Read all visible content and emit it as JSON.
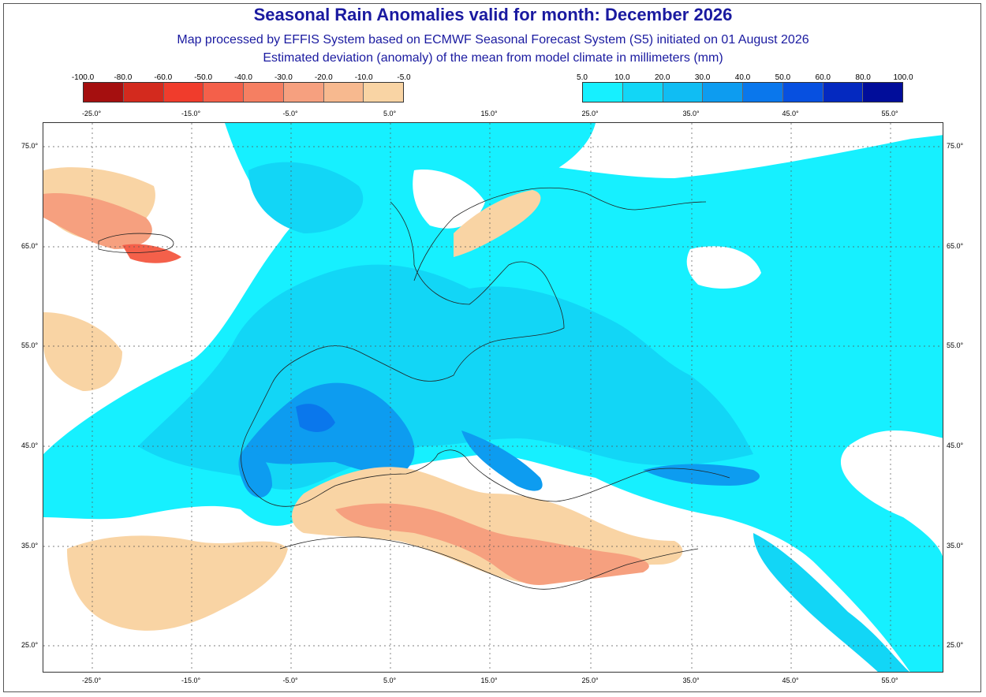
{
  "title": "Seasonal Rain Anomalies valid for month: December 2026",
  "subtitle1": "Map processed by EFFIS System based on ECMWF Seasonal Forecast System (S5) initiated on 01 August 2026",
  "subtitle2": "Estimated deviation (anomaly) of the mean from model climate in millimeters (mm)",
  "legend_negative": {
    "ticks": [
      "-100.0",
      "-80.0",
      "-60.0",
      "-50.0",
      "-40.0",
      "-30.0",
      "-20.0",
      "-10.0",
      "-5.0"
    ],
    "colors": [
      "#a50f0f",
      "#d32a1e",
      "#f03c2c",
      "#f4604a",
      "#f57f62",
      "#f6a07f",
      "#f7b98f",
      "#f9d4a4"
    ]
  },
  "legend_positive": {
    "ticks": [
      "5.0",
      "10.0",
      "20.0",
      "30.0",
      "40.0",
      "50.0",
      "60.0",
      "80.0",
      "100.0"
    ],
    "colors": [
      "#16f0ff",
      "#12d6f6",
      "#10bdf3",
      "#0d9cf0",
      "#0a77ec",
      "#0750e0",
      "#0429c0",
      "#010d9a"
    ]
  },
  "lon_labels": [
    "-25.0°",
    "-15.0°",
    "-5.0°",
    "5.0°",
    "15.0°",
    "25.0°",
    "35.0°",
    "45.0°",
    "55.0°"
  ],
  "lat_labels": [
    "75.0°",
    "65.0°",
    "55.0°",
    "45.0°",
    "35.0°",
    "25.0°"
  ],
  "map_colors": {
    "ocean": "#ffffff",
    "positive_light": "#16f0ff",
    "positive_mid": "#12d6f6",
    "positive_strong": "#0d9cf0",
    "positive_deep": "#0a77ec",
    "negative_light": "#f9d4a4",
    "negative_mid": "#f6a07f",
    "negative_strong": "#f4604a"
  }
}
